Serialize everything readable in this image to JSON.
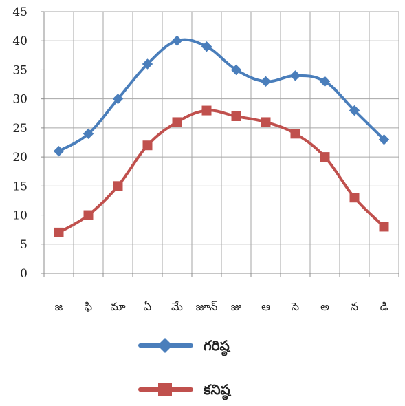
{
  "chart_data": {
    "type": "line",
    "categories": [
      "జ",
      "ఫి",
      "మా",
      "ఏ",
      "మే",
      "జూన్",
      "జు",
      "ఆ",
      "సె",
      "అ",
      "న",
      "డి"
    ],
    "ylim": [
      0,
      45
    ],
    "yticks": [
      0,
      5,
      10,
      15,
      20,
      25,
      30,
      35,
      40,
      45
    ],
    "grid": true,
    "legend_position": "bottom",
    "series": [
      {
        "name": "గరిష్ఠ",
        "color": "#4a7ebb",
        "marker": "diamond",
        "values": [
          21,
          24,
          30,
          36,
          40,
          39,
          35,
          33,
          34,
          33,
          28,
          23
        ]
      },
      {
        "name": "కనిష్ఠ",
        "color": "#c0504d",
        "marker": "square",
        "values": [
          7,
          10,
          15,
          22,
          26,
          28,
          27,
          26,
          24,
          20,
          13,
          8
        ]
      }
    ]
  }
}
